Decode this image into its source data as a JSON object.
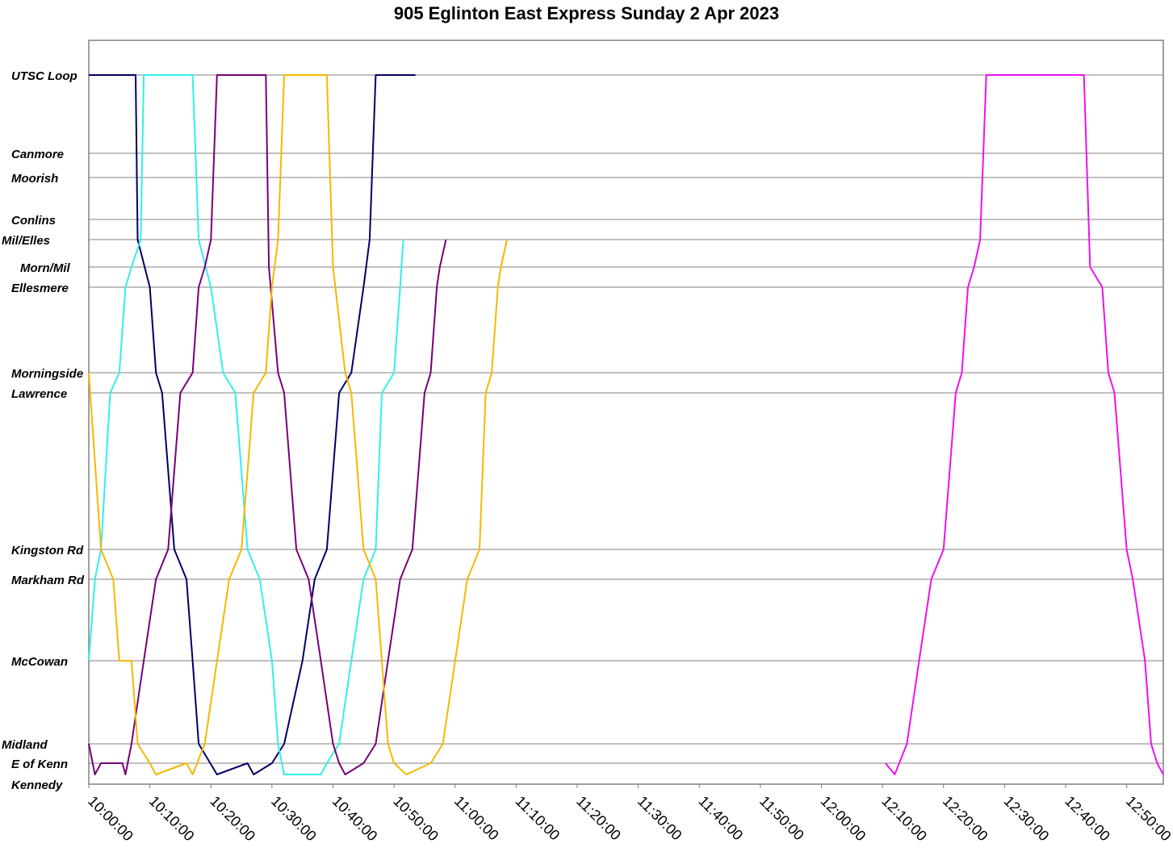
{
  "chart_data": {
    "type": "line",
    "title": "905 Eglinton East Express Sunday 2 Apr 2023",
    "xlabel": "",
    "ylabel": "",
    "x_axis": {
      "min": "10:00:00",
      "max": "12:56:00",
      "tick_labels": [
        "10:00:00",
        "10:10:00",
        "10:20:00",
        "10:30:00",
        "10:40:00",
        "10:50:00",
        "11:00:00",
        "11:10:00",
        "11:20:00",
        "11:30:00",
        "11:40:00",
        "11:50:00",
        "12:00:00",
        "12:10:00",
        "12:20:00",
        "12:30:00",
        "12:40:00",
        "12:50:00"
      ]
    },
    "stops": [
      "UTSC Loop",
      "Canmore",
      "Moorish",
      "Conlins",
      "Mil/Elles",
      "Morn/Mil",
      "Ellesmere",
      "Morningside",
      "Lawrence",
      "Kingston Rd",
      "Markham Rd",
      "McCowan",
      "Midland",
      "E of Kenn",
      "Kennedy"
    ],
    "grid": true,
    "legend": "none",
    "colors": {
      "navy": "#000066",
      "cyan": "#33eeee",
      "purple": "#770077",
      "gold": "#f5b800",
      "magenta": "#ee11ee"
    },
    "series": [
      {
        "color": "navy",
        "points": [
          [
            "10:00:00",
            "UTSC Loop"
          ],
          [
            "10:07:00",
            "UTSC Loop"
          ],
          [
            "10:07:40",
            "UTSC Loop"
          ],
          [
            "10:08:00",
            "Mil/Elles"
          ],
          [
            "10:10:00",
            "Ellesmere"
          ],
          [
            "10:11:00",
            "Morningside"
          ],
          [
            "10:12:00",
            "Lawrence"
          ],
          [
            "10:14:00",
            "Kingston Rd"
          ],
          [
            "10:16:00",
            "Markham Rd"
          ],
          [
            "10:17:00",
            "McCowan"
          ],
          [
            "10:18:00",
            "Midland"
          ],
          [
            "10:21:00",
            "Kennedy"
          ],
          [
            "10:26:00",
            "E of Kenn"
          ],
          [
            "10:27:00",
            "Kennedy"
          ],
          [
            "10:30:00",
            "E of Kenn"
          ],
          [
            "10:32:00",
            "Midland"
          ],
          [
            "10:35:00",
            "McCowan"
          ],
          [
            "10:37:00",
            "Markham Rd"
          ],
          [
            "10:39:00",
            "Kingston Rd"
          ],
          [
            "10:41:00",
            "Lawrence"
          ],
          [
            "10:43:00",
            "Morningside"
          ],
          [
            "10:45:00",
            "Ellesmere"
          ],
          [
            "10:46:00",
            "Mil/Elles"
          ],
          [
            "10:47:00",
            "UTSC Loop"
          ],
          [
            "10:49:00",
            "UTSC Loop"
          ],
          [
            "10:51:00",
            "UTSC Loop"
          ],
          [
            "10:52:00",
            "UTSC Loop"
          ],
          [
            "10:53:30",
            "UTSC Loop"
          ]
        ]
      },
      {
        "color": "cyan",
        "points": [
          [
            "10:00:00",
            "McCowan"
          ],
          [
            "10:01:00",
            "Markham Rd"
          ],
          [
            "10:02:00",
            "Kingston Rd"
          ],
          [
            "10:03:30",
            "Lawrence"
          ],
          [
            "10:05:00",
            "Morningside"
          ],
          [
            "10:06:00",
            "Ellesmere"
          ],
          [
            "10:07:00",
            "Morn/Mil"
          ],
          [
            "10:08:30",
            "Mil/Elles"
          ],
          [
            "10:09:00",
            "UTSC Loop"
          ],
          [
            "10:16:00",
            "UTSC Loop"
          ],
          [
            "10:17:00",
            "UTSC Loop"
          ],
          [
            "10:18:00",
            "Mil/Elles"
          ],
          [
            "10:20:00",
            "Ellesmere"
          ],
          [
            "10:22:00",
            "Morningside"
          ],
          [
            "10:24:00",
            "Lawrence"
          ],
          [
            "10:26:00",
            "Kingston Rd"
          ],
          [
            "10:28:00",
            "Markham Rd"
          ],
          [
            "10:30:00",
            "McCowan"
          ],
          [
            "10:31:00",
            "Midland"
          ],
          [
            "10:32:00",
            "Kennedy"
          ],
          [
            "10:38:00",
            "Kennedy"
          ],
          [
            "10:39:00",
            "E of Kenn"
          ],
          [
            "10:41:00",
            "Midland"
          ],
          [
            "10:43:00",
            "McCowan"
          ],
          [
            "10:45:00",
            "Markham Rd"
          ],
          [
            "10:47:00",
            "Kingston Rd"
          ],
          [
            "10:48:00",
            "Lawrence"
          ],
          [
            "10:50:00",
            "Morningside"
          ],
          [
            "10:51:00",
            "Ellesmere"
          ],
          [
            "10:51:30",
            "Mil/Elles"
          ]
        ]
      },
      {
        "color": "purple",
        "points": [
          [
            "10:00:00",
            "Midland"
          ],
          [
            "10:01:00",
            "Kennedy"
          ],
          [
            "10:02:00",
            "E of Kenn"
          ],
          [
            "10:05:30",
            "E of Kenn"
          ],
          [
            "10:06:00",
            "Kennedy"
          ],
          [
            "10:07:00",
            "Midland"
          ],
          [
            "10:09:00",
            "McCowan"
          ],
          [
            "10:11:00",
            "Markham Rd"
          ],
          [
            "10:13:00",
            "Kingston Rd"
          ],
          [
            "10:15:00",
            "Lawrence"
          ],
          [
            "10:17:00",
            "Morningside"
          ],
          [
            "10:18:00",
            "Ellesmere"
          ],
          [
            "10:19:00",
            "Morn/Mil"
          ],
          [
            "10:20:00",
            "Mil/Elles"
          ],
          [
            "10:21:00",
            "UTSC Loop"
          ],
          [
            "10:28:00",
            "UTSC Loop"
          ],
          [
            "10:29:00",
            "UTSC Loop"
          ],
          [
            "10:29:30",
            "Morn/Mil"
          ],
          [
            "10:31:00",
            "Morningside"
          ],
          [
            "10:32:00",
            "Lawrence"
          ],
          [
            "10:34:00",
            "Kingston Rd"
          ],
          [
            "10:36:00",
            "Markham Rd"
          ],
          [
            "10:38:00",
            "McCowan"
          ],
          [
            "10:40:00",
            "Midland"
          ],
          [
            "10:41:00",
            "E of Kenn"
          ],
          [
            "10:42:00",
            "Kennedy"
          ],
          [
            "10:45:00",
            "E of Kenn"
          ],
          [
            "10:47:00",
            "Midland"
          ],
          [
            "10:49:00",
            "McCowan"
          ],
          [
            "10:51:00",
            "Markham Rd"
          ],
          [
            "10:53:00",
            "Kingston Rd"
          ],
          [
            "10:55:00",
            "Lawrence"
          ],
          [
            "10:56:00",
            "Morningside"
          ],
          [
            "10:57:00",
            "Ellesmere"
          ],
          [
            "10:57:30",
            "Morn/Mil"
          ],
          [
            "10:58:30",
            "Mil/Elles"
          ]
        ]
      },
      {
        "color": "gold",
        "points": [
          [
            "10:00:00",
            "Morningside"
          ],
          [
            "10:02:00",
            "Kingston Rd"
          ],
          [
            "10:04:00",
            "Markham Rd"
          ],
          [
            "10:05:00",
            "McCowan"
          ],
          [
            "10:07:00",
            "McCowan"
          ],
          [
            "10:08:00",
            "Midland"
          ],
          [
            "10:10:00",
            "E of Kenn"
          ],
          [
            "10:11:00",
            "Kennedy"
          ],
          [
            "10:16:00",
            "E of Kenn"
          ],
          [
            "10:17:00",
            "Kennedy"
          ],
          [
            "10:19:00",
            "Midland"
          ],
          [
            "10:21:00",
            "McCowan"
          ],
          [
            "10:23:00",
            "Markham Rd"
          ],
          [
            "10:25:00",
            "Kingston Rd"
          ],
          [
            "10:27:00",
            "Lawrence"
          ],
          [
            "10:29:00",
            "Morningside"
          ],
          [
            "10:30:00",
            "Ellesmere"
          ],
          [
            "10:31:00",
            "Mil/Elles"
          ],
          [
            "10:32:00",
            "UTSC Loop"
          ],
          [
            "10:38:00",
            "UTSC Loop"
          ],
          [
            "10:39:00",
            "UTSC Loop"
          ],
          [
            "10:40:00",
            "Morn/Mil"
          ],
          [
            "10:42:00",
            "Morningside"
          ],
          [
            "10:43:00",
            "Lawrence"
          ],
          [
            "10:45:00",
            "Kingston Rd"
          ],
          [
            "10:47:00",
            "Markham Rd"
          ],
          [
            "10:48:00",
            "McCowan"
          ],
          [
            "10:49:00",
            "Midland"
          ],
          [
            "10:50:00",
            "E of Kenn"
          ],
          [
            "10:52:00",
            "Kennedy"
          ],
          [
            "10:56:00",
            "E of Kenn"
          ],
          [
            "10:58:00",
            "Midland"
          ],
          [
            "11:00:00",
            "McCowan"
          ],
          [
            "11:02:00",
            "Markham Rd"
          ],
          [
            "11:04:00",
            "Kingston Rd"
          ],
          [
            "11:05:00",
            "Lawrence"
          ],
          [
            "11:06:00",
            "Morningside"
          ],
          [
            "11:07:00",
            "Ellesmere"
          ],
          [
            "11:07:30",
            "Morn/Mil"
          ],
          [
            "11:08:30",
            "Mil/Elles"
          ]
        ]
      },
      {
        "color": "magenta",
        "points": [
          [
            "12:10:30",
            "E of Kenn"
          ],
          [
            "12:12:00",
            "Kennedy"
          ],
          [
            "12:14:00",
            "Midland"
          ],
          [
            "12:16:00",
            "McCowan"
          ],
          [
            "12:18:00",
            "Markham Rd"
          ],
          [
            "12:20:00",
            "Kingston Rd"
          ],
          [
            "12:22:00",
            "Lawrence"
          ],
          [
            "12:23:00",
            "Morningside"
          ],
          [
            "12:24:00",
            "Ellesmere"
          ],
          [
            "12:25:00",
            "Morn/Mil"
          ],
          [
            "12:26:00",
            "Mil/Elles"
          ],
          [
            "12:27:00",
            "UTSC Loop"
          ],
          [
            "12:42:00",
            "UTSC Loop"
          ],
          [
            "12:43:00",
            "UTSC Loop"
          ],
          [
            "12:44:00",
            "Morn/Mil"
          ],
          [
            "12:46:00",
            "Ellesmere"
          ],
          [
            "12:47:00",
            "Morningside"
          ],
          [
            "12:48:00",
            "Lawrence"
          ],
          [
            "12:50:00",
            "Kingston Rd"
          ],
          [
            "12:51:00",
            "Markham Rd"
          ],
          [
            "12:53:00",
            "McCowan"
          ],
          [
            "12:54:00",
            "Midland"
          ],
          [
            "12:55:00",
            "E of Kenn"
          ],
          [
            "12:56:00",
            "Kennedy"
          ]
        ]
      }
    ]
  }
}
